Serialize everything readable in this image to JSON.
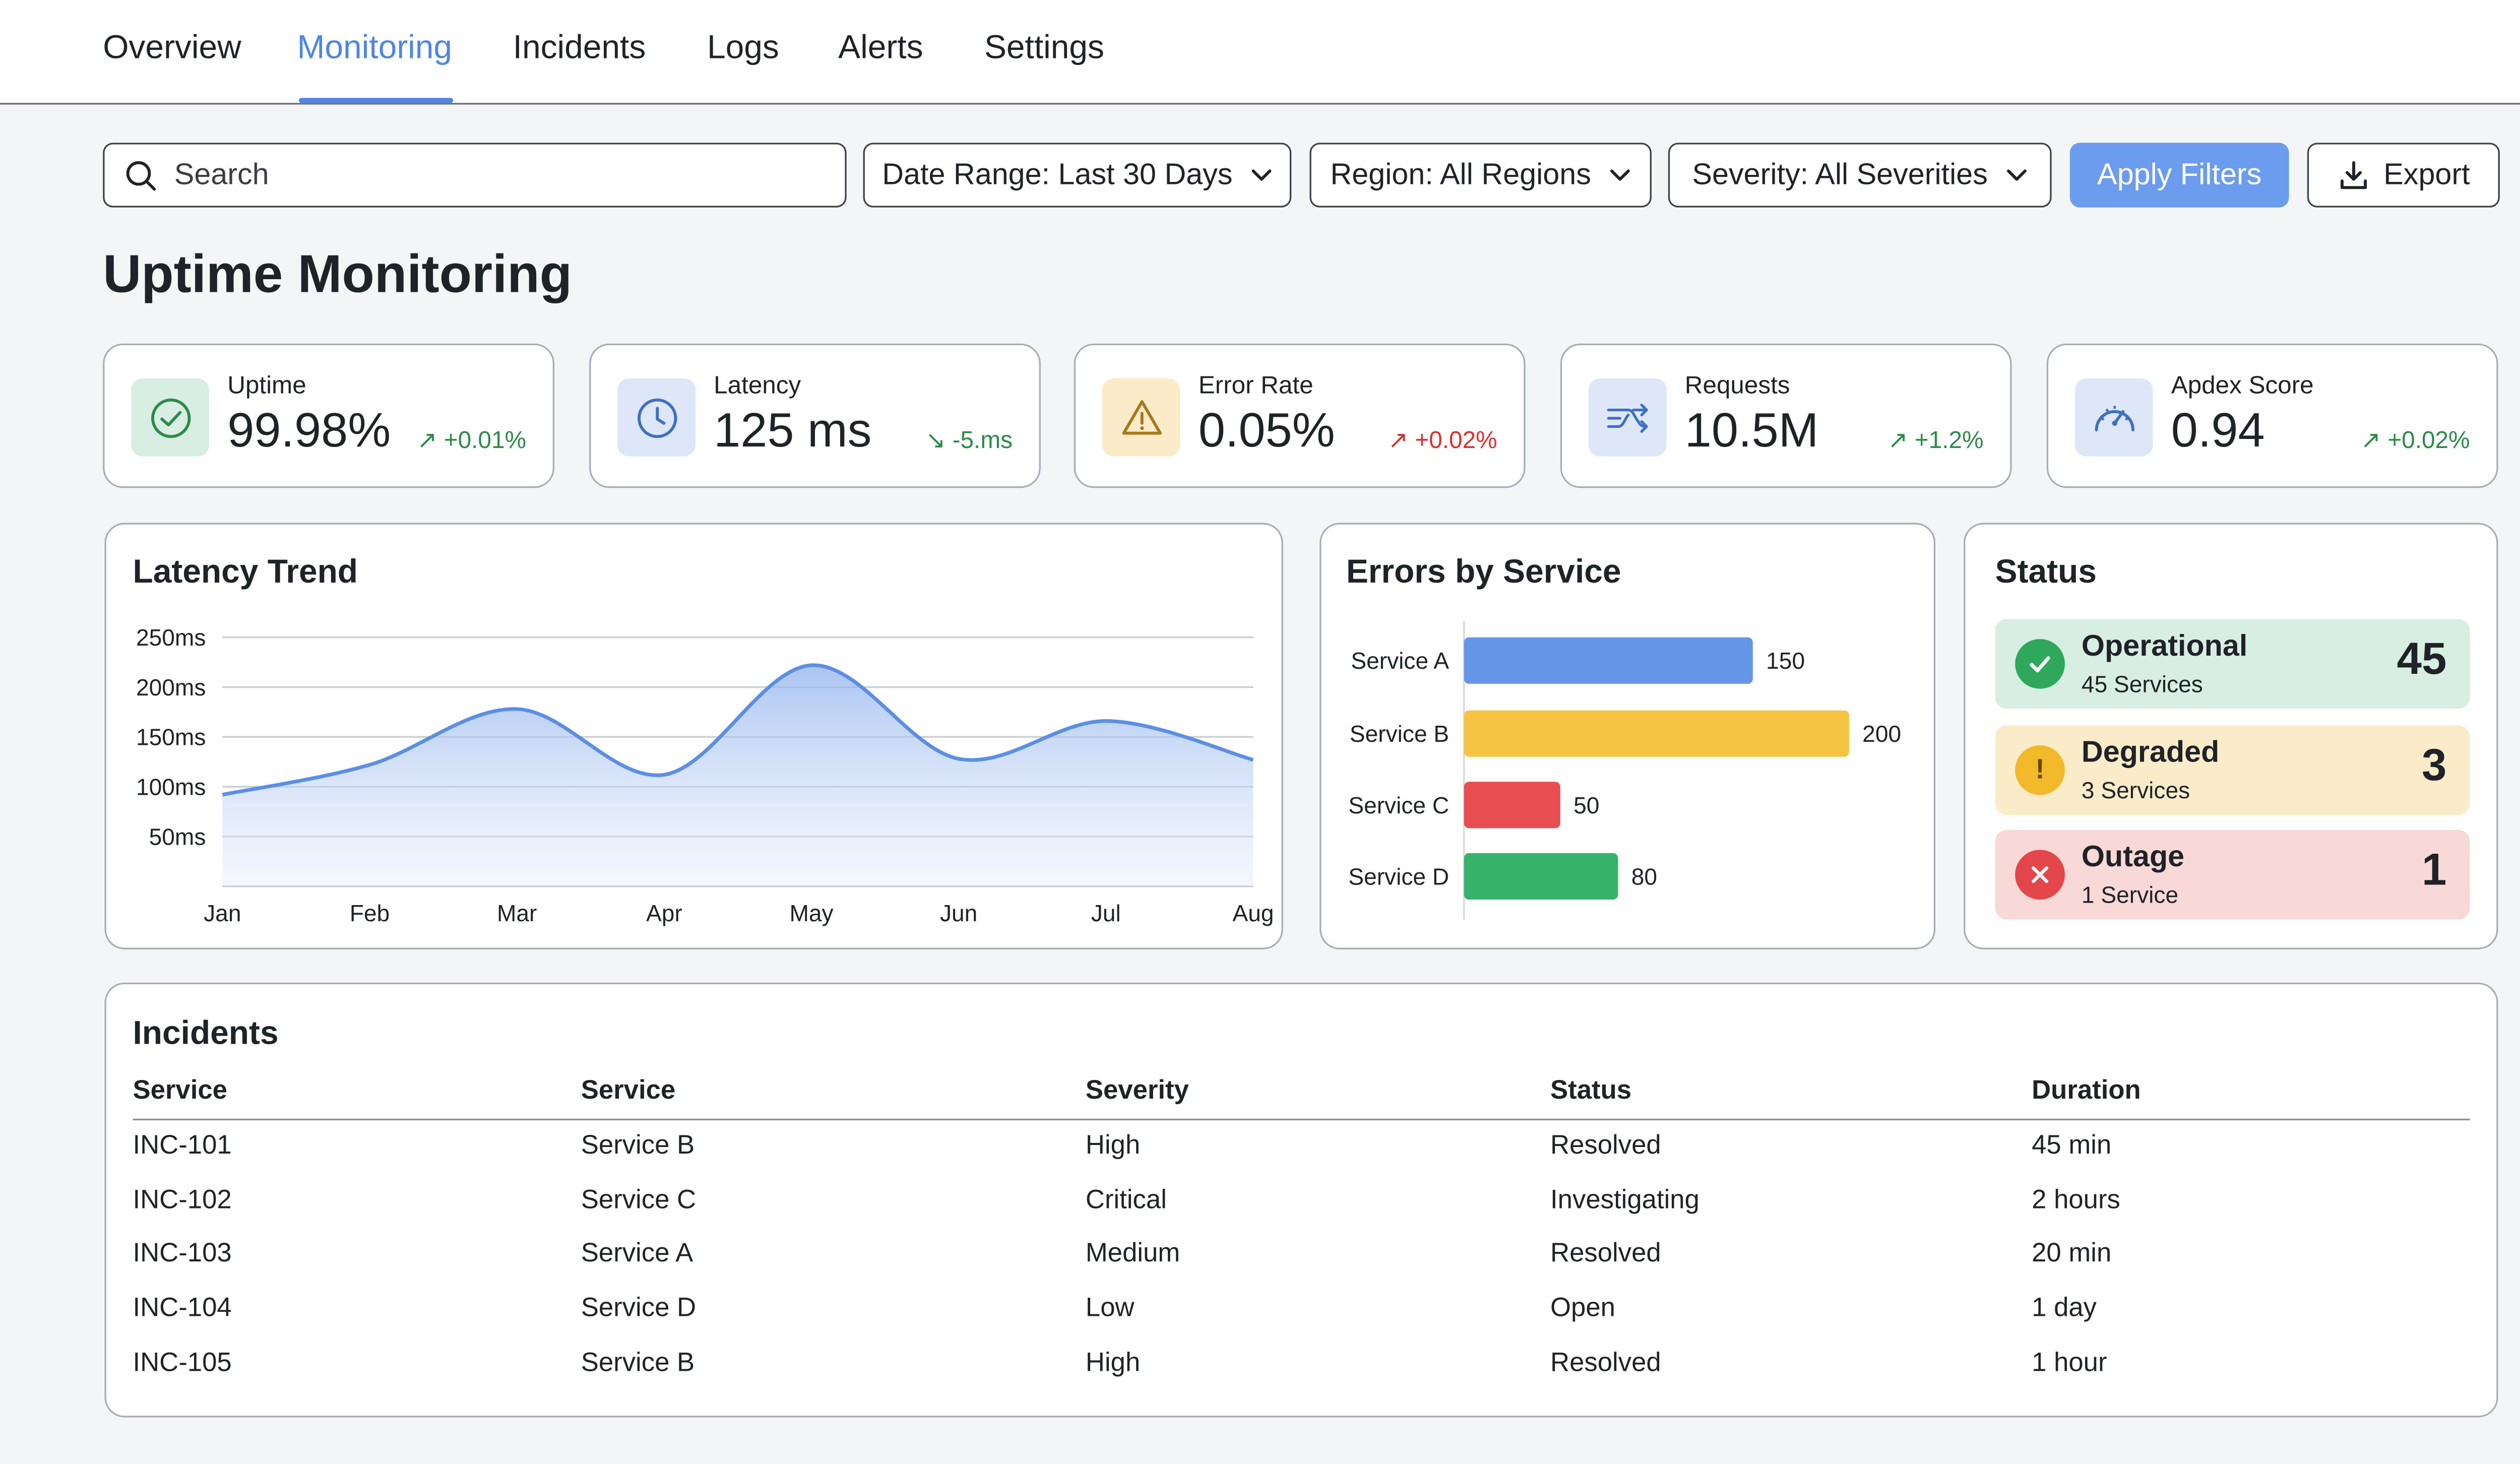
{
  "nav": {
    "tabs": [
      {
        "label": "Overview"
      },
      {
        "label": "Monitoring",
        "active": true
      },
      {
        "label": "Incidents"
      },
      {
        "label": "Logs"
      },
      {
        "label": "Alerts"
      },
      {
        "label": "Settings"
      }
    ]
  },
  "toolbar": {
    "search_placeholder": "Search",
    "date_range": "Date Range: Last 30 Days",
    "region": "Region: All Regions",
    "severity": "Severity: All Severities",
    "apply_label": "Apply Filters",
    "export_label": "Export",
    "accent_color": "#6b9cee"
  },
  "page_title": "Uptime Monitoring",
  "kpis": [
    {
      "label": "Uptime",
      "value": "99.98%",
      "delta": "+0.01%",
      "trend": "up",
      "icon": "check-circle-icon",
      "color": "#2e8a4b"
    },
    {
      "label": "Latency",
      "value": "125 ms",
      "delta": "-5.ms",
      "trend": "down",
      "icon": "clock-icon",
      "color": "#2e8a4b"
    },
    {
      "label": "Error Rate",
      "value": "0.05%",
      "delta": "+0.02%",
      "trend": "up",
      "icon": "warning-triangle-icon",
      "color": "#d93131"
    },
    {
      "label": "Requests",
      "value": "10.5M",
      "delta": "+1.2%",
      "trend": "up",
      "icon": "requests-arrows-icon",
      "color": "#2e8a4b"
    },
    {
      "label": "Apdex Score",
      "value": "0.94",
      "delta": "+0.02%",
      "trend": "up",
      "icon": "gauge-icon",
      "color": "#2e8a4b"
    }
  ],
  "latency_panel": {
    "title": "Latency Trend"
  },
  "errors_panel": {
    "title": "Errors by Service"
  },
  "chart_data": [
    {
      "type": "area",
      "title": "Latency Trend",
      "categories": [
        "Jan",
        "Feb",
        "Mar",
        "Apr",
        "May",
        "Jun",
        "Jul",
        "Aug"
      ],
      "values": [
        92,
        122,
        178,
        112,
        222,
        128,
        166,
        127
      ],
      "yticks": [
        50,
        100,
        150,
        200,
        250
      ],
      "ytick_labels": [
        "50ms",
        "100ms",
        "150ms",
        "200ms",
        "250ms"
      ],
      "ylim": [
        0,
        250
      ],
      "grid": true,
      "color": "#5b8fe6"
    },
    {
      "type": "bar",
      "orientation": "horizontal",
      "title": "Errors by Service",
      "categories": [
        "Service A",
        "Service B",
        "Service C",
        "Service D"
      ],
      "values": [
        150,
        200,
        50,
        80
      ],
      "colors": [
        "#6596e8",
        "#f5c443",
        "#e84d51",
        "#36b26a"
      ],
      "xlim": [
        0,
        200
      ]
    }
  ],
  "status_panel": {
    "title": "Status",
    "items": [
      {
        "name": "Operational",
        "sub": "45 Services",
        "count": "45",
        "bg": "#d9eee2",
        "dot": "#2fa85c",
        "icon": "check-icon"
      },
      {
        "name": "Degraded",
        "sub": "3 Services",
        "count": "3",
        "bg": "#fbecc9",
        "dot": "#f2b92b",
        "icon": "exclamation-icon"
      },
      {
        "name": "Outage",
        "sub": "1 Service",
        "count": "1",
        "bg": "#f8d9d8",
        "dot": "#e4474b",
        "icon": "x-icon"
      }
    ]
  },
  "incidents": {
    "title": "Incidents",
    "columns": [
      "Service",
      "Service",
      "Severity",
      "Status",
      "Duration"
    ],
    "rows": [
      [
        "INC-101",
        "Service B",
        "High",
        "Resolved",
        "45 min"
      ],
      [
        "INC-102",
        "Service C",
        "Critical",
        "Investigating",
        "2 hours"
      ],
      [
        "INC-103",
        "Service A",
        "Medium",
        "Resolved",
        "20 min"
      ],
      [
        "INC-104",
        "Service D",
        "Low",
        "Open",
        "1 day"
      ],
      [
        "INC-105",
        "Service B",
        "High",
        "Resolved",
        "1 hour"
      ]
    ]
  }
}
